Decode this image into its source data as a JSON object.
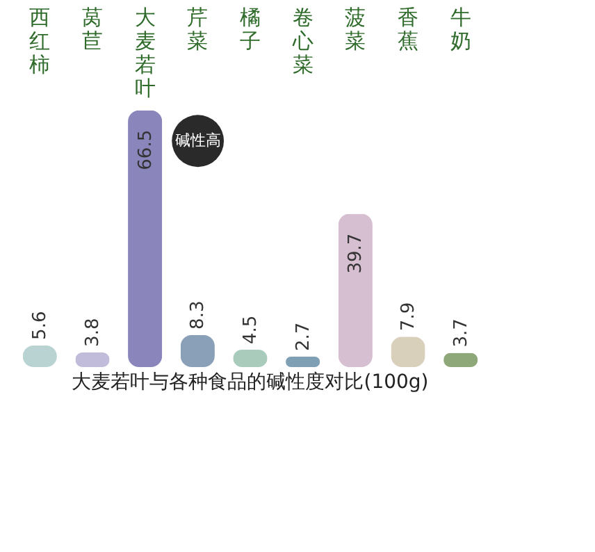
{
  "chart_data": {
    "type": "bar",
    "title": "大麦若叶与各种食品的碱性度对比(100g)",
    "categories": [
      "西红柿",
      "莴苣",
      "大麦若叶",
      "芹菜",
      "橘子",
      "卷心菜",
      "菠菜",
      "香蕉",
      "牛奶"
    ],
    "values": [
      5.6,
      3.8,
      66.5,
      8.3,
      4.5,
      2.7,
      39.7,
      7.9,
      3.7
    ],
    "data_labels": true,
    "colors": [
      "#b9d3d3",
      "#c0bcd9",
      "#8a86bc",
      "#8aa0b8",
      "#a9cbbb",
      "#7f9fb5",
      "#d7bfd2",
      "#d9d0bc",
      "#8fa87a"
    ],
    "annotations": [
      {
        "text": "碱性高",
        "x": "大麦若叶",
        "y": 66.5
      }
    ],
    "grid": false
  }
}
